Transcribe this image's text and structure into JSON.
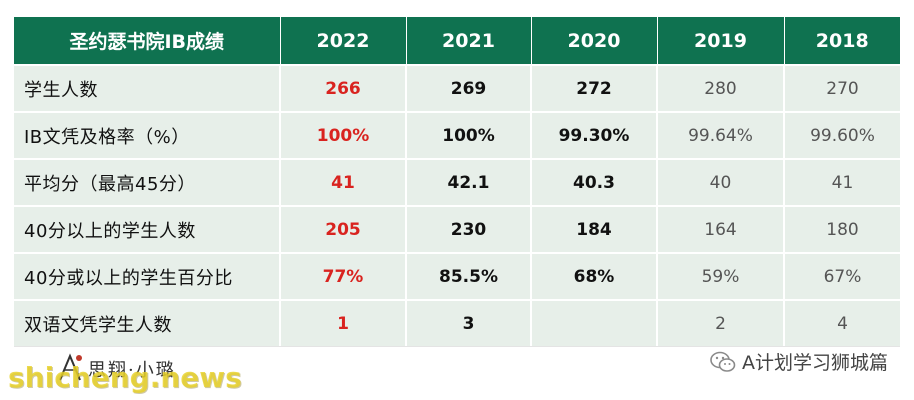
{
  "table": {
    "header": {
      "title": "圣约瑟书院IB成绩",
      "years": [
        "2022",
        "2021",
        "2020",
        "2019",
        "2018"
      ]
    },
    "rows": [
      {
        "label": "学生人数",
        "values": [
          "266",
          "269",
          "272",
          "280",
          "270"
        ]
      },
      {
        "label": "IB文凭及格率（%）",
        "values": [
          "100%",
          "100%",
          "99.30%",
          "99.64%",
          "99.60%"
        ]
      },
      {
        "label": "平均分（最高45分）",
        "values": [
          "41",
          "42.1",
          "40.3",
          "40",
          "41"
        ]
      },
      {
        "label": "40分以上的学生人数",
        "values": [
          "205",
          "230",
          "184",
          "164",
          "180"
        ]
      },
      {
        "label": "40分或以上的学生百分比",
        "values": [
          "77%",
          "85.5%",
          "68%",
          "59%",
          "67%"
        ]
      },
      {
        "label": "双语文凭学生人数",
        "values": [
          "1",
          "3",
          "",
          "2",
          "4"
        ]
      }
    ]
  },
  "footer": {
    "brand_name": "思翔·小璐",
    "watermark": "shicheng.news",
    "account_name": "A计划学习狮城篇"
  },
  "colors": {
    "header_bg": "#0f7250",
    "cell_bg": "#e7efe9",
    "highlight_2022": "#d9231f"
  },
  "icons": {
    "logo": "stylized-person-logo-icon",
    "source": "wechat-icon"
  }
}
